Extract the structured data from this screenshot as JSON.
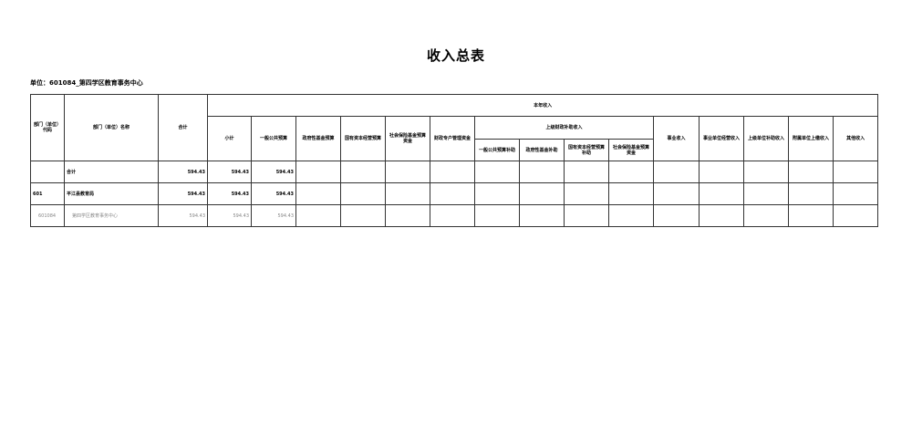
{
  "title": "收入总表",
  "unit": "单位：601084_第四学区教育事务中心",
  "headers": {
    "code": "部门（单位）代码",
    "name": "部门（单位）名称",
    "total": "合计",
    "current_year": "本年收入",
    "subtotal": "小计",
    "general_budget": "一般公共预算",
    "gov_fund": "政府性基金预算",
    "state_capital": "国有资本经营预算",
    "social_insurance": "社会保险基金预算资金",
    "fiscal_account": "财政专户管理资金",
    "upper_subsidy": "上级财政补助收入",
    "upper_general": "一般公共预算补助",
    "upper_gov_fund": "政府性基金补助",
    "upper_state_capital": "国有资本经营预算补助",
    "upper_social": "社会保险基金预算资金",
    "business": "事业收入",
    "business_operating": "事业单位经营收入",
    "upper_unit": "上级单位补助收入",
    "affiliated": "附属单位上缴收入",
    "other": "其他收入"
  },
  "rows": [
    {
      "code": "",
      "name": "合计",
      "total": "594.43",
      "subtotal": "594.43",
      "general_budget": "594.43"
    },
    {
      "code": "601",
      "name": "平江县教育局",
      "total": "594.43",
      "subtotal": "594.43",
      "general_budget": "594.43"
    },
    {
      "code": "601084",
      "name": "第四学区教育事务中心",
      "total": "594.43",
      "subtotal": "594.43",
      "general_budget": "594.43"
    }
  ]
}
